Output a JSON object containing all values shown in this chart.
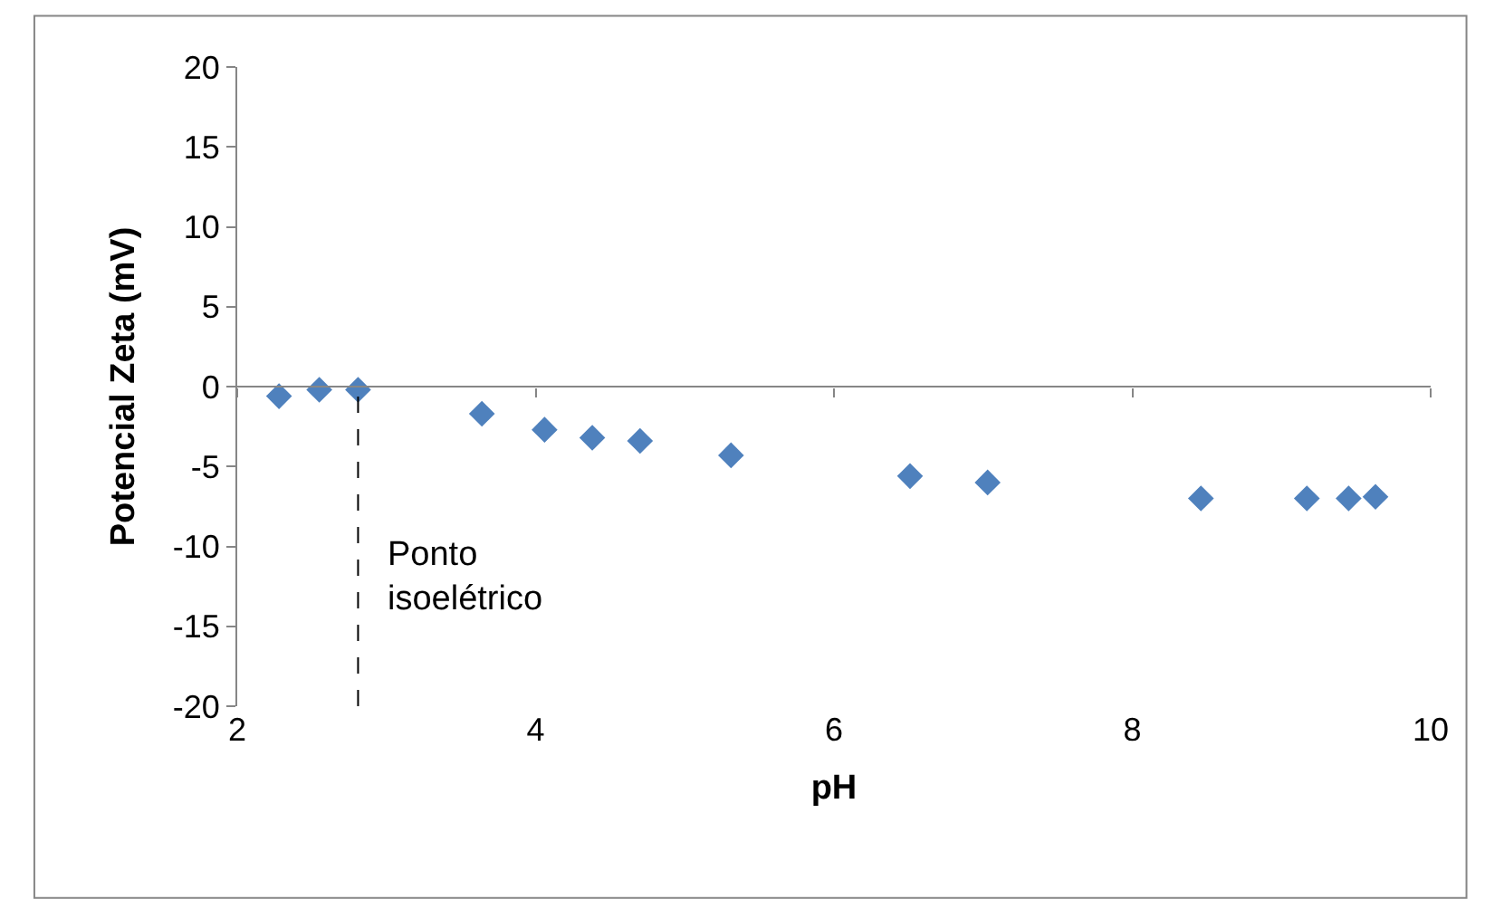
{
  "chart_data": {
    "type": "scatter",
    "xlabel": "pH",
    "ylabel": "Potencial Zeta (mV)",
    "x": [
      2.28,
      2.55,
      2.81,
      3.64,
      4.06,
      4.38,
      4.7,
      5.31,
      6.51,
      7.03,
      8.46,
      9.17,
      9.45,
      9.63
    ],
    "series": [
      {
        "color": "#4f81bd",
        "values": [
          -0.6,
          -0.2,
          -0.2,
          -1.7,
          -2.7,
          -3.2,
          -3.4,
          -4.3,
          -5.6,
          -6.0,
          -7.0,
          -7.0,
          -7.0,
          -6.9
        ]
      }
    ],
    "xlim": [
      2,
      10
    ],
    "xticks": [
      2,
      4,
      6,
      8,
      10
    ],
    "ylim": [
      -20,
      20
    ],
    "yticks": [
      -20,
      -15,
      -10,
      -5,
      0,
      5,
      10,
      15,
      20
    ],
    "ref_lines": [
      {
        "axis": "y",
        "value": 0,
        "line_style": "solid",
        "color": "#868686"
      },
      {
        "axis": "x",
        "value": 2.81,
        "label": "Ponto\nisoelétrico",
        "line_style": "dashed",
        "color": "#000000"
      }
    ],
    "marker": "diamond"
  }
}
